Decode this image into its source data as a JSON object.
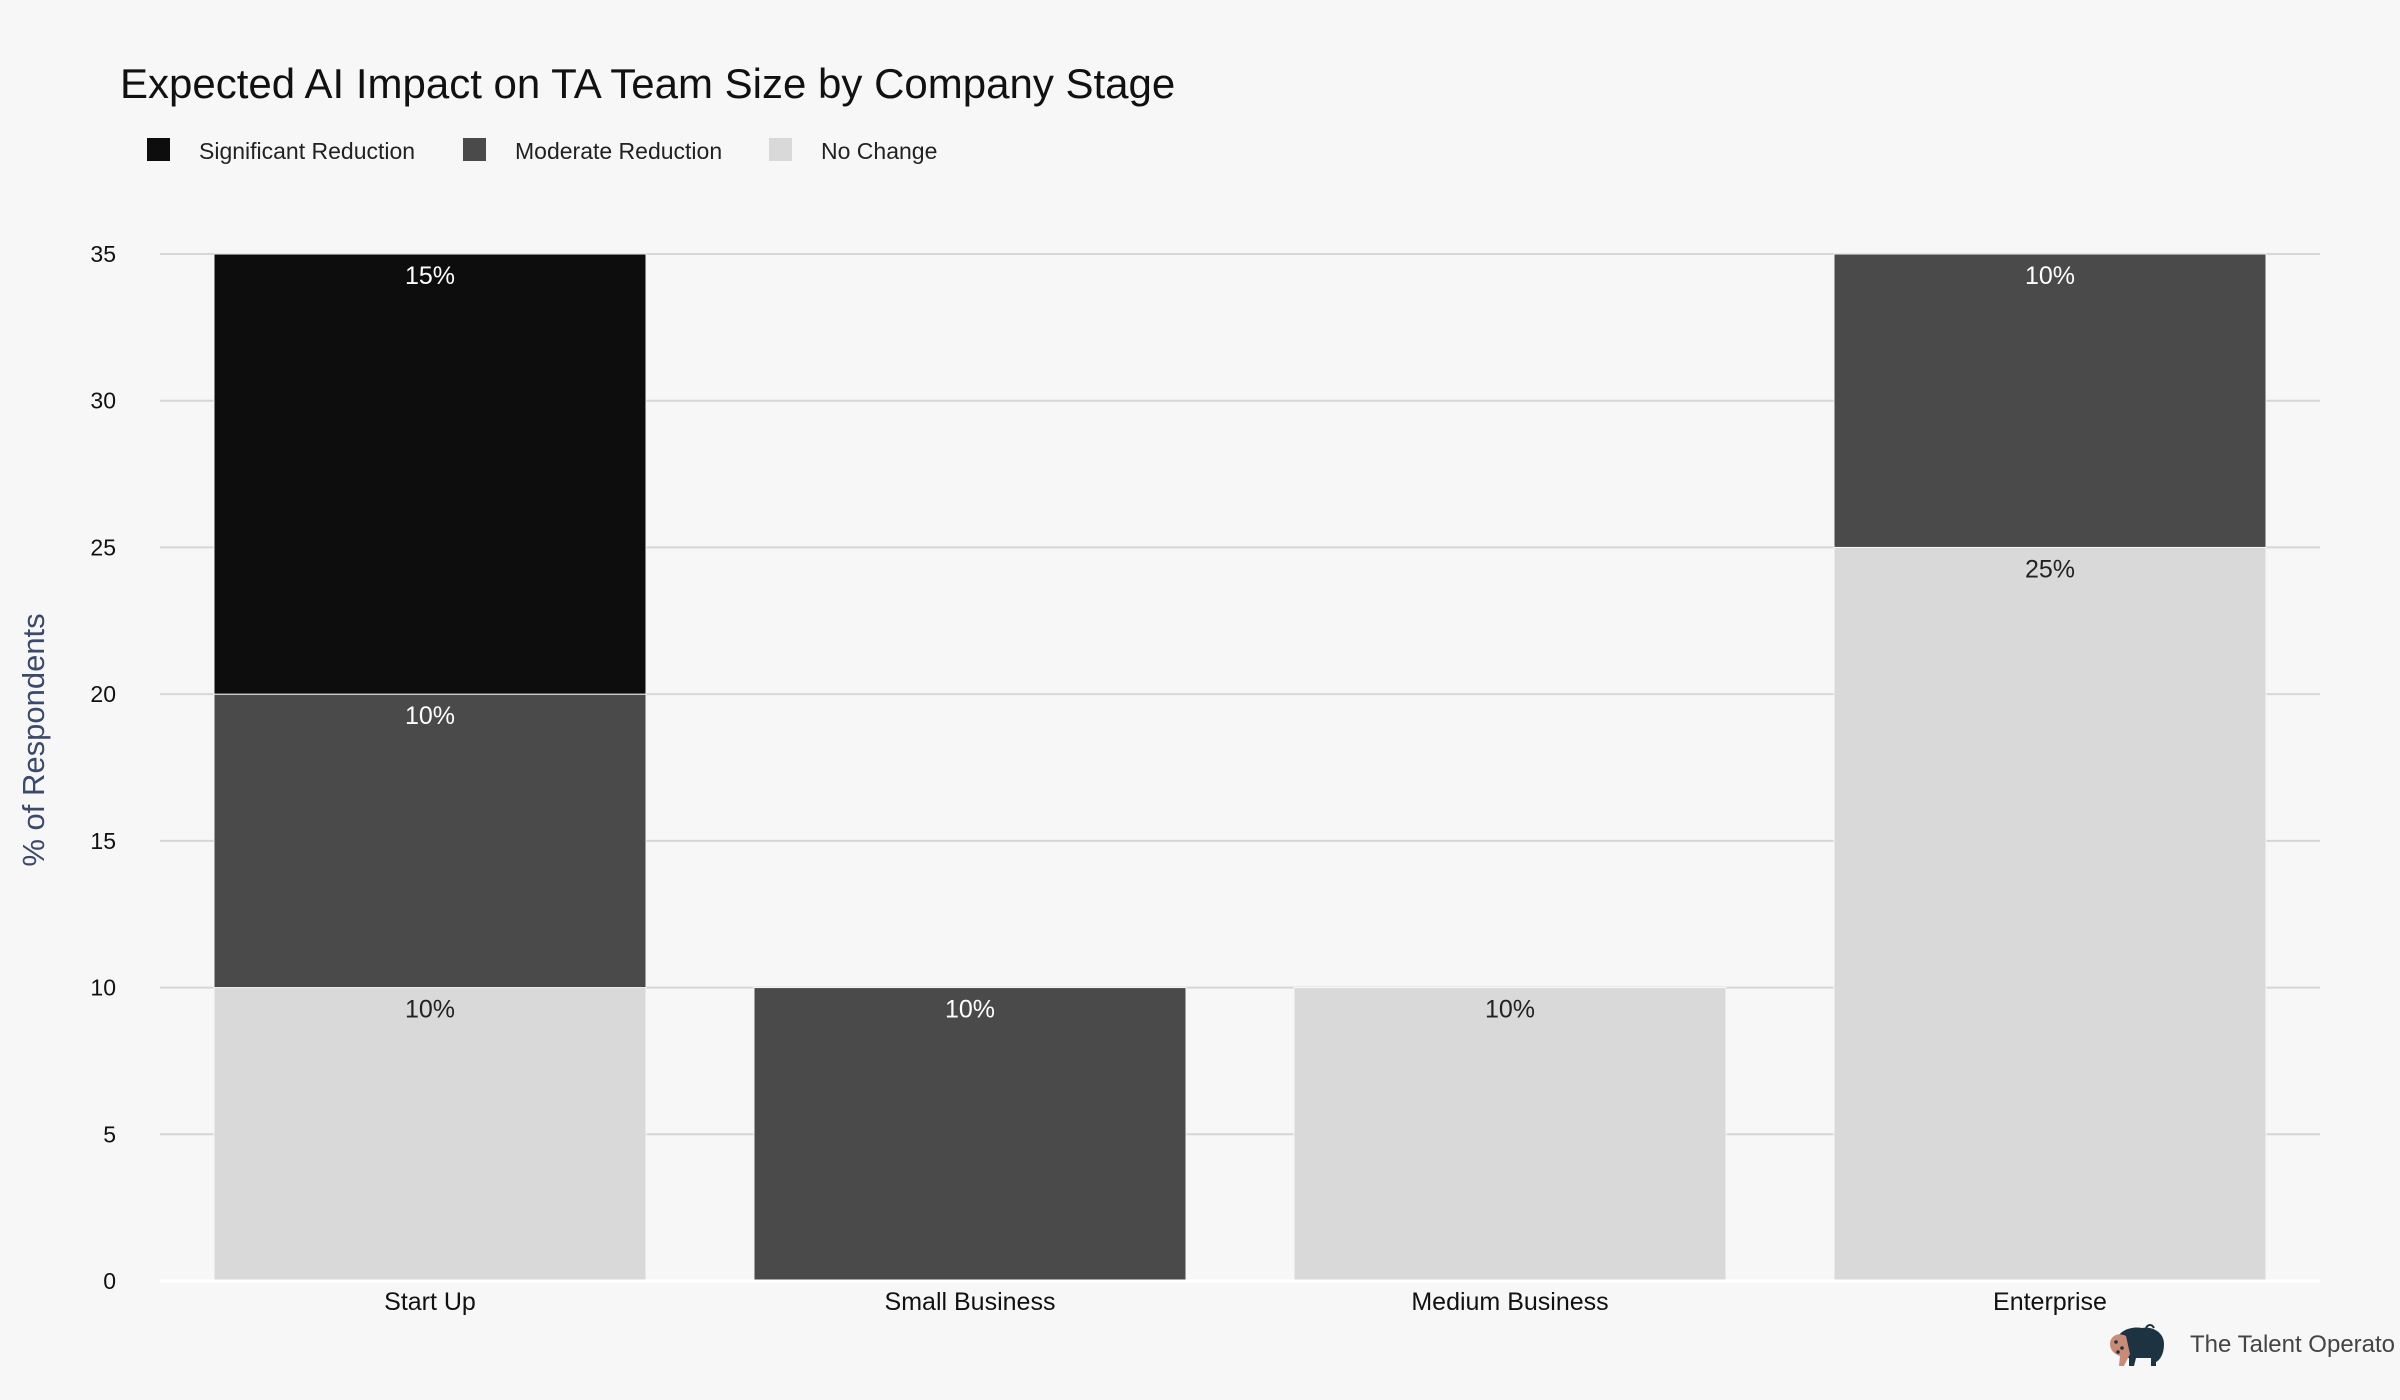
{
  "chart_data": {
    "type": "bar",
    "stacked": true,
    "title": "Expected AI Impact on TA Team Size by Company Stage",
    "ylabel": "% of Respondents",
    "xlabel": "",
    "ylim": [
      0,
      35
    ],
    "yticks": [
      0,
      5,
      10,
      15,
      20,
      25,
      30,
      35
    ],
    "grid": true,
    "legend_position": "top-left",
    "categories": [
      "Start Up",
      "Small Business",
      "Medium Business",
      "Enterprise"
    ],
    "series": [
      {
        "name": "No Change",
        "color": "#d9d9d9",
        "label_color": "#222222",
        "values": [
          10,
          0,
          10,
          25
        ]
      },
      {
        "name": "Moderate Reduction",
        "color": "#4a4a4a",
        "label_color": "#ffffff",
        "values": [
          10,
          10,
          0,
          10
        ]
      },
      {
        "name": "Significant Reduction",
        "color": "#0d0d0d",
        "label_color": "#ffffff",
        "values": [
          15,
          0,
          0,
          0
        ]
      }
    ],
    "legend_order": [
      "Significant Reduction",
      "Moderate Reduction",
      "No Change"
    ],
    "value_suffix": "%"
  },
  "branding": {
    "text": "The Talent Operato",
    "logo_icon": "bison-logo-icon"
  },
  "colors": {
    "background": "#f7f7f7",
    "grid": "#d6d6d6",
    "title": "#111111",
    "axis_title": "#3b4a6b",
    "tick": "#111111"
  }
}
